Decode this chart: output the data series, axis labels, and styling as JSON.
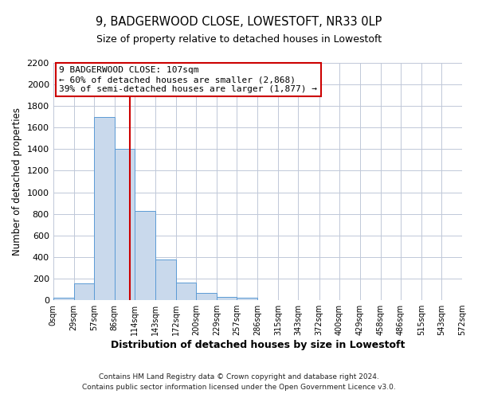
{
  "title": "9, BADGERWOOD CLOSE, LOWESTOFT, NR33 0LP",
  "subtitle": "Size of property relative to detached houses in Lowestoft",
  "xlabel": "Distribution of detached houses by size in Lowestoft",
  "ylabel": "Number of detached properties",
  "bin_labels": [
    "0sqm",
    "29sqm",
    "57sqm",
    "86sqm",
    "114sqm",
    "143sqm",
    "172sqm",
    "200sqm",
    "229sqm",
    "257sqm",
    "286sqm",
    "315sqm",
    "343sqm",
    "372sqm",
    "400sqm",
    "429sqm",
    "458sqm",
    "486sqm",
    "515sqm",
    "543sqm",
    "572sqm"
  ],
  "bar_heights": [
    20,
    155,
    1700,
    1400,
    830,
    380,
    160,
    65,
    30,
    20,
    0,
    0,
    0,
    0,
    0,
    0,
    0,
    0,
    0,
    0
  ],
  "bar_color": "#c9d9ec",
  "bar_edgecolor": "#5b9bd5",
  "vline_x": 107,
  "bin_edges": [
    0,
    29,
    57,
    86,
    114,
    143,
    172,
    200,
    229,
    257,
    286,
    315,
    343,
    372,
    400,
    429,
    458,
    486,
    515,
    543,
    572
  ],
  "annotation_title": "9 BADGERWOOD CLOSE: 107sqm",
  "annotation_line1": "← 60% of detached houses are smaller (2,868)",
  "annotation_line2": "39% of semi-detached houses are larger (1,877) →",
  "annotation_box_color": "#cc0000",
  "ylim": [
    0,
    2200
  ],
  "yticks": [
    0,
    200,
    400,
    600,
    800,
    1000,
    1200,
    1400,
    1600,
    1800,
    2000,
    2200
  ],
  "background_color": "#ffffff",
  "grid_color": "#c0c8d8",
  "footer1": "Contains HM Land Registry data © Crown copyright and database right 2024.",
  "footer2": "Contains public sector information licensed under the Open Government Licence v3.0."
}
